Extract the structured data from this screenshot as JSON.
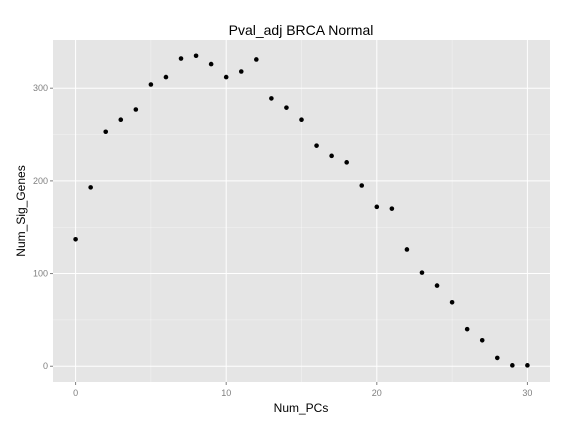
{
  "chart_data": {
    "type": "scatter",
    "title": "Pval_adj BRCA Normal",
    "xlabel": "Num_PCs",
    "ylabel": "Num_Sig_Genes",
    "xlim": [
      -1.5,
      31.5
    ],
    "ylim": [
      -17,
      352
    ],
    "xticks": [
      0,
      10,
      20,
      30
    ],
    "yticks": [
      0,
      100,
      200,
      300
    ],
    "xtick_labels": [
      "0",
      "10",
      "20",
      "30"
    ],
    "ytick_labels": [
      "0",
      "100",
      "200",
      "300"
    ],
    "x_minor": [
      5,
      15,
      25
    ],
    "y_minor": [
      50,
      150,
      250
    ],
    "grid": true,
    "legend": "none",
    "colors": {
      "panel": "#e5e5e5",
      "grid": "#ffffff",
      "point": "#000000",
      "tick": "#7f7f7f"
    },
    "series": [
      {
        "x": [
          0,
          1,
          2,
          3,
          4,
          5,
          6,
          7,
          8,
          9,
          10,
          11,
          12,
          13,
          14,
          15,
          16,
          17,
          18,
          19,
          20,
          21,
          22,
          23,
          24,
          25,
          26,
          27,
          28,
          29,
          30
        ],
        "values": [
          137,
          193,
          253,
          266,
          277,
          304,
          312,
          332,
          335,
          326,
          312,
          318,
          331,
          289,
          279,
          266,
          238,
          227,
          220,
          195,
          172,
          170,
          126,
          101,
          87,
          69,
          40,
          28,
          9,
          1,
          1
        ]
      }
    ]
  }
}
